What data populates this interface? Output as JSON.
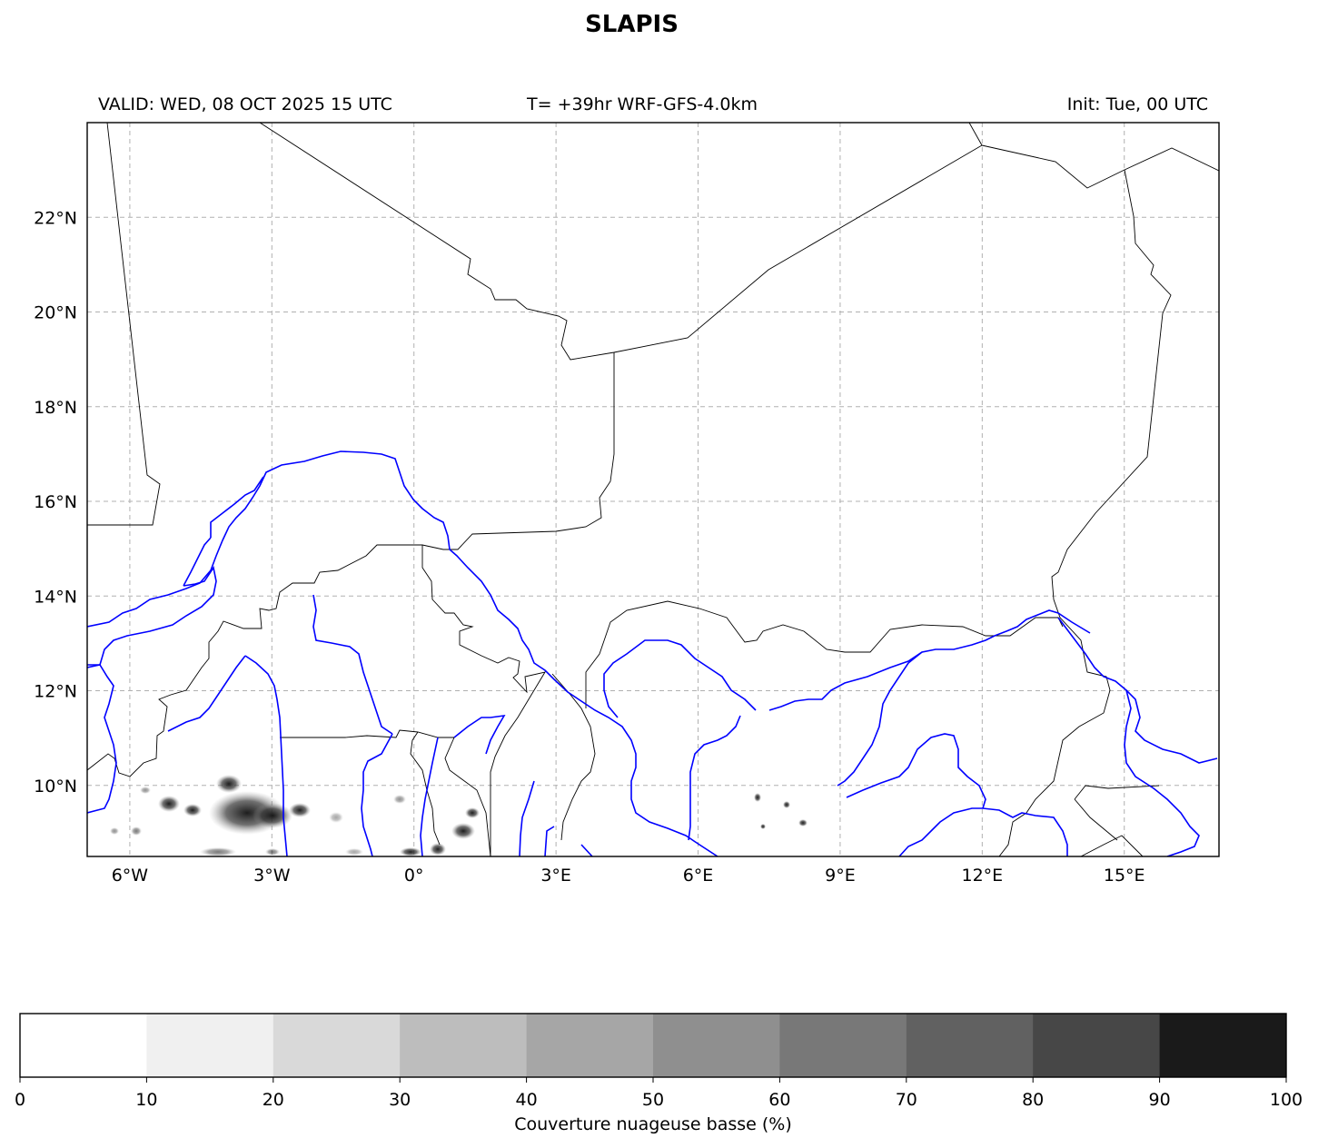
{
  "title": "SLAPIS",
  "header": {
    "valid": "VALID: WED, 08 OCT 2025 15 UTC",
    "forecast": "T= +39hr WRF-GFS-4.0km",
    "init": "Init: Tue, 00 UTC"
  },
  "map": {
    "lon_ticks": [
      "6°W",
      "3°W",
      "0°",
      "3°E",
      "6°E",
      "9°E",
      "12°E",
      "15°E"
    ],
    "lat_ticks": [
      "22°N",
      "20°N",
      "18°N",
      "16°N",
      "14°N",
      "12°N",
      "10°N"
    ],
    "extent": {
      "lon": [
        -6.9,
        17.0
      ],
      "lat": [
        8.5,
        24.0
      ]
    },
    "grid": true,
    "border_color": "#000000",
    "river_color": "#0000ff",
    "gridline_color": "#b0b0b0"
  },
  "colorbar": {
    "label": "Couverture nuageuse basse (%)",
    "ticks": [
      "0",
      "10",
      "20",
      "30",
      "40",
      "50",
      "60",
      "70",
      "80",
      "90",
      "100"
    ],
    "colors": [
      "#ffffff",
      "#f0f0f0",
      "#d9d9d9",
      "#bdbdbd",
      "#a6a6a6",
      "#8f8f8f",
      "#787878",
      "#616161",
      "#474747",
      "#1a1a1a"
    ]
  }
}
